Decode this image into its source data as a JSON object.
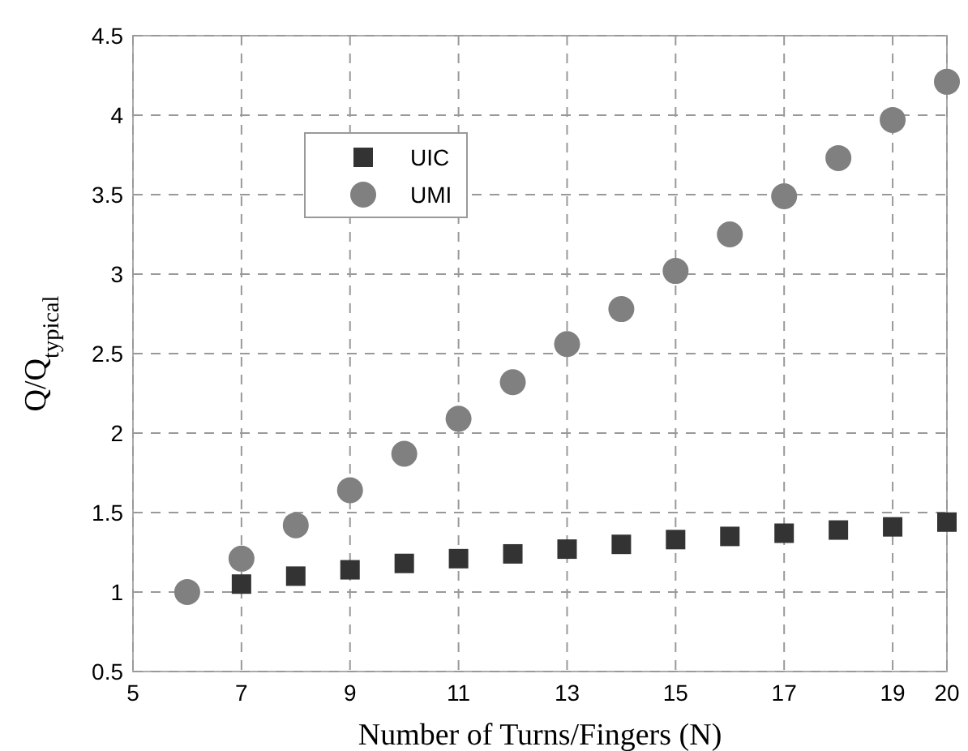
{
  "chart_data": {
    "type": "scatter",
    "xlabel": "Number of Turns/Fingers (N)",
    "ylabel": "Q/Q$_{typical}$",
    "xlim": [
      5,
      20
    ],
    "xticks": [
      5,
      7,
      9,
      11,
      13,
      15,
      17,
      19,
      20
    ],
    "ylim": [
      0.5,
      4.5
    ],
    "yticks": [
      0.5,
      1,
      1.5,
      2,
      2.5,
      3,
      3.5,
      4,
      4.5
    ],
    "grid": true,
    "legend": "top left",
    "series": [
      {
        "name": "UIC",
        "color": "#333333",
        "marker": "square",
        "x": [
          7,
          8,
          9,
          10,
          11,
          12,
          13,
          14,
          15,
          16,
          17,
          18,
          19,
          20
        ],
        "values": [
          1.05,
          1.1,
          1.14,
          1.18,
          1.21,
          1.24,
          1.27,
          1.3,
          1.33,
          1.35,
          1.37,
          1.39,
          1.41,
          1.44
        ]
      },
      {
        "name": "UMI",
        "color": "#808080",
        "marker": "circle",
        "x": [
          6,
          7,
          8,
          9,
          10,
          11,
          12,
          13,
          14,
          15,
          16,
          17,
          18,
          19,
          20
        ],
        "values": [
          1.0,
          1.21,
          1.42,
          1.64,
          1.87,
          2.09,
          2.32,
          2.56,
          2.78,
          3.02,
          3.25,
          3.49,
          3.73,
          3.97,
          4.21
        ]
      }
    ]
  }
}
